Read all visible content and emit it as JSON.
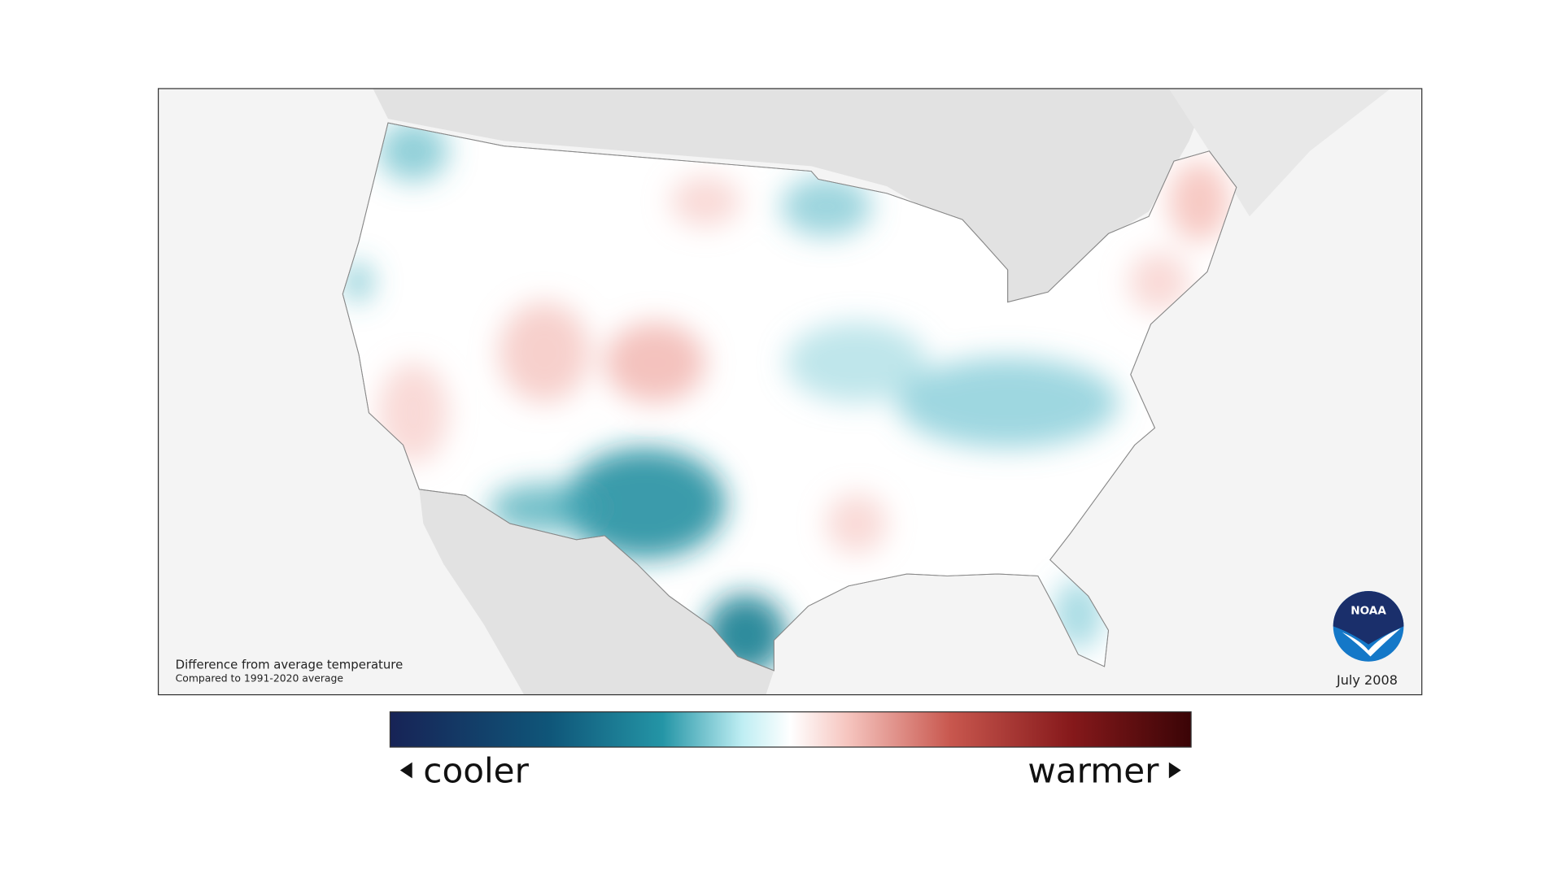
{
  "map": {
    "caption": {
      "title": "Difference from average temperature",
      "subtitle": "Compared to 1991-2020 average"
    },
    "date": "July 2008",
    "logo": "NOAA"
  },
  "legend": {
    "low_label": "cooler",
    "high_label": "warmer"
  }
}
